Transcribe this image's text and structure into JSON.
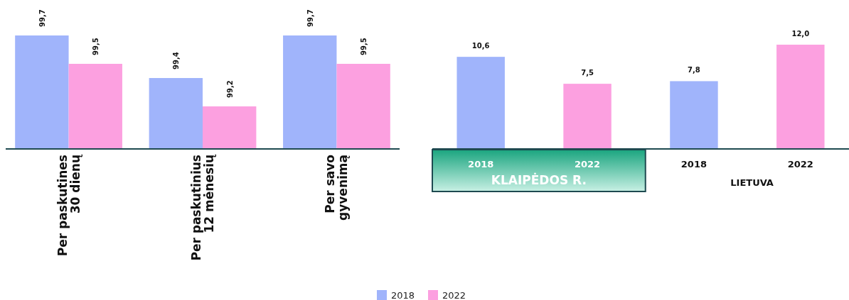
{
  "chart_data": [
    {
      "type": "bar",
      "categories": [
        "Per paskutines\n30 dienų",
        "Per paskutinius\n12 mėnesių",
        "Per savo\ngyvenimą"
      ],
      "series": [
        {
          "name": "2018",
          "color": "#a0b4fb",
          "values": [
            99.7,
            99.4,
            99.7
          ],
          "value_labels": [
            "99,7",
            "99,4",
            "99,7"
          ]
        },
        {
          "name": "2022",
          "color": "#fca0e0",
          "values": [
            99.5,
            99.2,
            99.5
          ],
          "value_labels": [
            "99,5",
            "99,2",
            "99,5"
          ]
        }
      ],
      "ylim": [
        98.9,
        99.7
      ],
      "tick_labels": "x",
      "legend": "bottom"
    },
    {
      "type": "bar",
      "categories": [
        "2018",
        "2022",
        "2018",
        "2022"
      ],
      "values": [
        10.6,
        7.5,
        7.8,
        12.0
      ],
      "colors": [
        "#a0b4fb",
        "#fca0e0",
        "#a0b4fb",
        "#fca0e0"
      ],
      "value_labels": [
        "10,6",
        "7,5",
        "7,8",
        "12,0"
      ],
      "ylim": [
        0,
        12.0
      ],
      "tick_labels": "x",
      "annotations": [
        "KLAIPĖDOS R.",
        "LIETUVA"
      ]
    }
  ]
}
